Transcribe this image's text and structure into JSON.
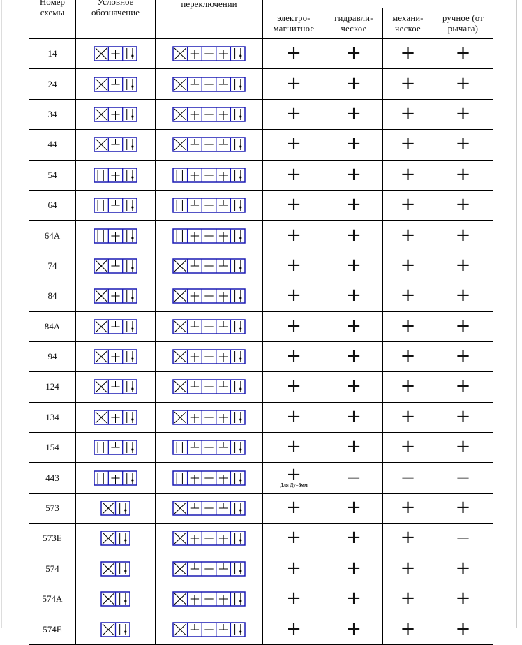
{
  "header": {
    "col_number": "Номер схемы",
    "col_symbol": "Условное обозначение",
    "col_connections": "соединения каналов при переключении",
    "control_types": [
      "электро-магнитное",
      "гидравли-ческое",
      "механи-ческое",
      "ручное (от рычага)"
    ]
  },
  "colors": {
    "symbol": "#1a1ab4",
    "border": "#000000"
  },
  "rows": [
    {
      "id": "14",
      "icon": "scheme-14-symbol",
      "cells": [
        "+",
        "+",
        "+",
        "+"
      ]
    },
    {
      "id": "24",
      "icon": "scheme-24-symbol",
      "cells": [
        "+",
        "+",
        "+",
        "+"
      ]
    },
    {
      "id": "34",
      "icon": "scheme-34-symbol",
      "cells": [
        "+",
        "+",
        "+",
        "+"
      ]
    },
    {
      "id": "44",
      "icon": "scheme-44-symbol",
      "cells": [
        "+",
        "+",
        "+",
        "+"
      ]
    },
    {
      "id": "54",
      "icon": "scheme-54-symbol",
      "cells": [
        "+",
        "+",
        "+",
        "+"
      ]
    },
    {
      "id": "64",
      "icon": "scheme-64-symbol",
      "cells": [
        "+",
        "+",
        "+",
        "+"
      ]
    },
    {
      "id": "64А",
      "icon": "scheme-64a-symbol",
      "cells": [
        "+",
        "+",
        "+",
        "+"
      ]
    },
    {
      "id": "74",
      "icon": "scheme-74-symbol",
      "cells": [
        "+",
        "+",
        "+",
        "+"
      ]
    },
    {
      "id": "84",
      "icon": "scheme-84-symbol",
      "cells": [
        "+",
        "+",
        "+",
        "+"
      ]
    },
    {
      "id": "84А",
      "icon": "scheme-84a-symbol",
      "cells": [
        "+",
        "+",
        "+",
        "+"
      ]
    },
    {
      "id": "94",
      "icon": "scheme-94-symbol",
      "cells": [
        "+",
        "+",
        "+",
        "+"
      ]
    },
    {
      "id": "124",
      "icon": "scheme-124-symbol",
      "cells": [
        "+",
        "+",
        "+",
        "+"
      ]
    },
    {
      "id": "134",
      "icon": "scheme-134-symbol",
      "cells": [
        "+",
        "+",
        "+",
        "+"
      ]
    },
    {
      "id": "154",
      "icon": "scheme-154-symbol",
      "cells": [
        "+",
        "+",
        "+",
        "+"
      ]
    },
    {
      "id": "443",
      "icon": "scheme-443-symbol",
      "cells": [
        "+",
        "—",
        "—",
        "—"
      ],
      "note": "Для Ду=6мм"
    },
    {
      "id": "573",
      "icon": "scheme-573-symbol",
      "cells": [
        "+",
        "+",
        "+",
        "+"
      ]
    },
    {
      "id": "573Е",
      "icon": "scheme-573e-symbol",
      "cells": [
        "+",
        "+",
        "+",
        "—"
      ]
    },
    {
      "id": "574",
      "icon": "scheme-574-symbol",
      "cells": [
        "+",
        "+",
        "+",
        "+"
      ]
    },
    {
      "id": "574А",
      "icon": "scheme-574a-symbol",
      "cells": [
        "+",
        "+",
        "+",
        "+"
      ]
    },
    {
      "id": "574Е",
      "icon": "scheme-574e-symbol",
      "cells": [
        "+",
        "+",
        "+",
        "+"
      ]
    }
  ]
}
